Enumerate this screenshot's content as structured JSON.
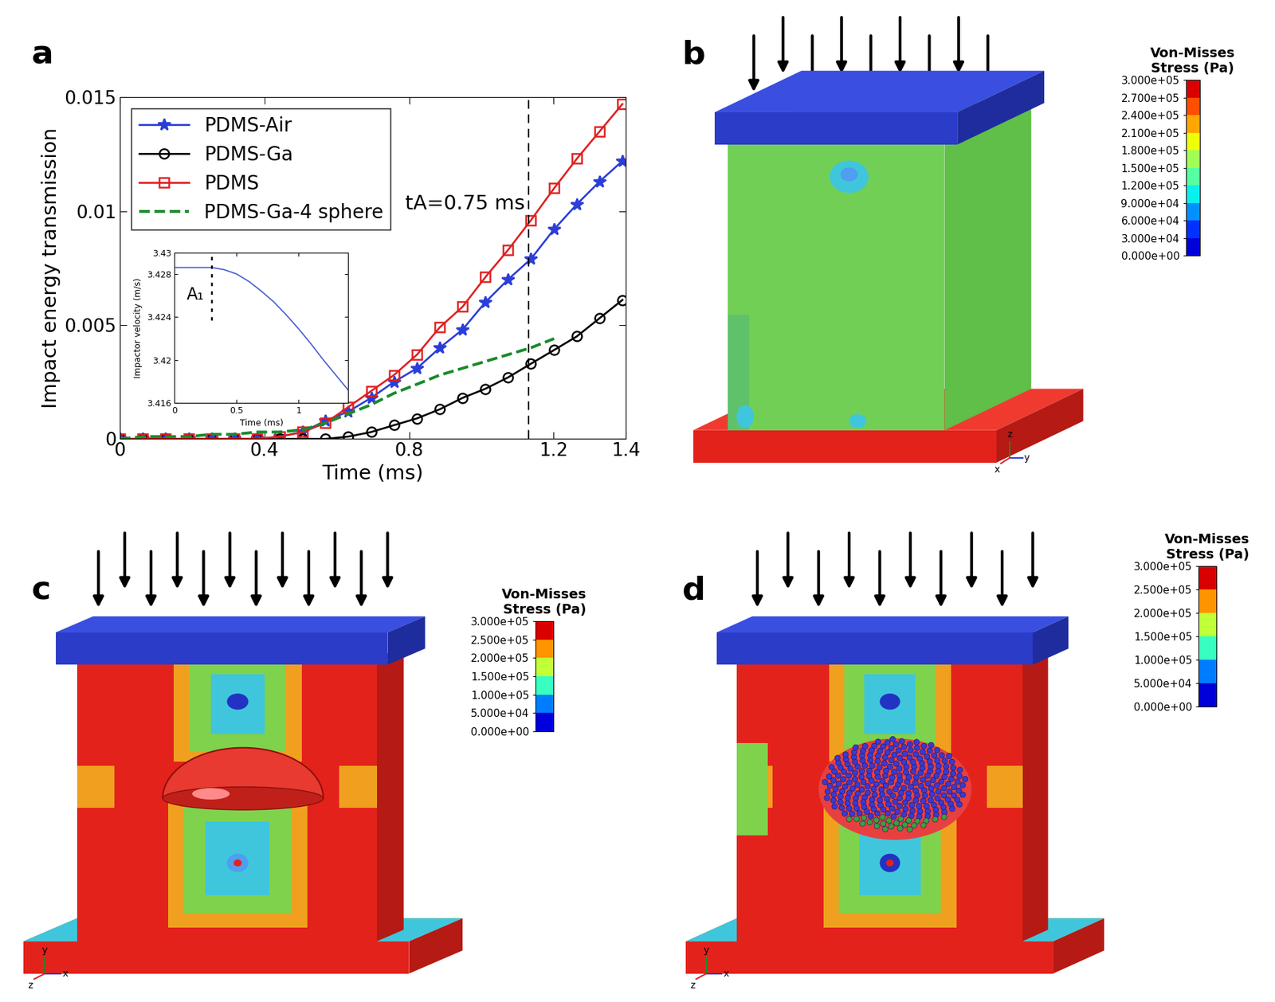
{
  "chart_data": [
    {
      "panel_label": "a",
      "type": "line",
      "x": [
        0,
        0.063,
        0.126,
        0.19,
        0.253,
        0.316,
        0.379,
        0.442,
        0.506,
        0.569,
        0.632,
        0.695,
        0.758,
        0.822,
        0.885,
        0.948,
        1.011,
        1.074,
        1.137,
        1.201,
        1.264,
        1.327,
        1.39
      ],
      "xlim": [
        0,
        1.4
      ],
      "xticks": [
        0,
        0.4,
        0.8,
        1.2,
        1.4
      ],
      "ylim": [
        0,
        0.015
      ],
      "yticks": [
        0,
        0.005,
        0.01,
        0.015
      ],
      "x_label": "Time (ms)",
      "y_label": "Impact energy transmission",
      "legend": "upper left",
      "series": [
        {
          "name": "PDMS-Air",
          "color": "#2b3ed8",
          "marker": "star",
          "line_style": "solid",
          "values": [
            0,
            0,
            0,
            0,
            0,
            0,
            0,
            0.0001,
            0.0003,
            0.0008,
            0.0012,
            0.0018,
            0.0025,
            0.0031,
            0.004,
            0.0048,
            0.006,
            0.007,
            0.0079,
            0.0092,
            0.0103,
            0.0113,
            0.0122
          ]
        },
        {
          "name": "PDMS-Ga",
          "color": "#000000",
          "marker": "circle",
          "line_style": "solid",
          "values": [
            0,
            0,
            0,
            0,
            0,
            0,
            0,
            0,
            0,
            0,
            0.0001,
            0.0003,
            0.0006,
            0.0009,
            0.0013,
            0.0018,
            0.0022,
            0.0027,
            0.0033,
            0.0039,
            0.0045,
            0.0053,
            0.0061
          ]
        },
        {
          "name": "PDMS",
          "color": "#e02020",
          "marker": "square",
          "line_style": "solid",
          "values": [
            0,
            0,
            0,
            0,
            0,
            0,
            0,
            0.0001,
            0.0003,
            0.0007,
            0.0014,
            0.0021,
            0.0028,
            0.0037,
            0.0049,
            0.0058,
            0.0071,
            0.0083,
            0.0096,
            0.011,
            0.0123,
            0.0135,
            0.0147
          ]
        },
        {
          "name": "PDMS-Ga-4 sphere",
          "color": "#1a8a2a",
          "marker": "none",
          "line_style": "dashed",
          "values": [
            0,
            0.0001,
            0.0001,
            0.0001,
            0.0002,
            0.0002,
            0.0003,
            0.0003,
            0.0004,
            0.0007,
            0.0011,
            0.0015,
            0.002,
            0.0024,
            0.0028,
            0.0031,
            0.0034,
            0.0037,
            0.004,
            0.0044,
            null,
            null,
            null
          ]
        }
      ],
      "vline": {
        "x": 1.13,
        "label": "tA=0.75 ms"
      },
      "inset": {
        "type": "line",
        "color": "#4a5fd0",
        "x": [
          0,
          0.1,
          0.2,
          0.3,
          0.4,
          0.5,
          0.6,
          0.7,
          0.8,
          0.9,
          1.0,
          1.1,
          1.2,
          1.3,
          1.4
        ],
        "values": [
          3.4286,
          3.4286,
          3.4286,
          3.4286,
          3.4284,
          3.428,
          3.4273,
          3.4264,
          3.4254,
          3.4242,
          3.4229,
          3.4215,
          3.42,
          3.4186,
          3.4172
        ],
        "xlim": [
          0,
          1.4
        ],
        "xticks": [
          0,
          0.5,
          1
        ],
        "ylim": [
          3.416,
          3.43
        ],
        "yticks": [
          3.416,
          3.42,
          3.424,
          3.428,
          3.43
        ],
        "x_label": "Time (ms)",
        "y_label": "Impactor velocity (m/s)",
        "vline": {
          "x": 0.3,
          "label": "A₁"
        }
      }
    },
    {
      "panel_label": "b",
      "type": "field",
      "triad": [
        "z",
        "y",
        "x"
      ],
      "colorbar": {
        "label": "Von-Misses\nStress (Pa)",
        "clim": [
          0,
          300000
        ],
        "cticks": [
          {
            "value": 0,
            "label": "0.000e+00"
          },
          {
            "value": 30000,
            "label": "3.000e+04"
          },
          {
            "value": 60000,
            "label": "6.000e+04"
          },
          {
            "value": 90000,
            "label": "9.000e+04"
          },
          {
            "value": 120000,
            "label": "1.200e+05"
          },
          {
            "value": 150000,
            "label": "1.500e+05"
          },
          {
            "value": 180000,
            "label": "1.800e+05"
          },
          {
            "value": 210000,
            "label": "2.100e+05"
          },
          {
            "value": 240000,
            "label": "2.400e+05"
          },
          {
            "value": 270000,
            "label": "2.700e+05"
          },
          {
            "value": 300000,
            "label": "3.000e+05"
          }
        ]
      }
    },
    {
      "panel_label": "c",
      "type": "field",
      "triad": [
        "y",
        "x",
        "z"
      ],
      "colorbar": {
        "label": "Von-Misses\nStress (Pa)",
        "clim": [
          0,
          300000
        ],
        "cticks": [
          {
            "value": 0,
            "label": "0.000e+00"
          },
          {
            "value": 50000,
            "label": "5.000e+04"
          },
          {
            "value": 100000,
            "label": "1.000e+05"
          },
          {
            "value": 150000,
            "label": "1.500e+05"
          },
          {
            "value": 200000,
            "label": "2.000e+05"
          },
          {
            "value": 250000,
            "label": "2.500e+05"
          },
          {
            "value": 300000,
            "label": "3.000e+05"
          }
        ]
      }
    },
    {
      "panel_label": "d",
      "type": "field",
      "triad": [
        "y",
        "x",
        "z"
      ],
      "colorbar": {
        "label": "Von-Misses\nStress (Pa)",
        "clim": [
          0,
          300000
        ],
        "cticks": [
          {
            "value": 0,
            "label": "0.000e+00"
          },
          {
            "value": 50000,
            "label": "5.000e+04"
          },
          {
            "value": 100000,
            "label": "1.000e+05"
          },
          {
            "value": 150000,
            "label": "1.500e+05"
          },
          {
            "value": 200000,
            "label": "2.000e+05"
          },
          {
            "value": 250000,
            "label": "2.500e+05"
          },
          {
            "value": 300000,
            "label": "3.000e+05"
          }
        ]
      }
    }
  ]
}
